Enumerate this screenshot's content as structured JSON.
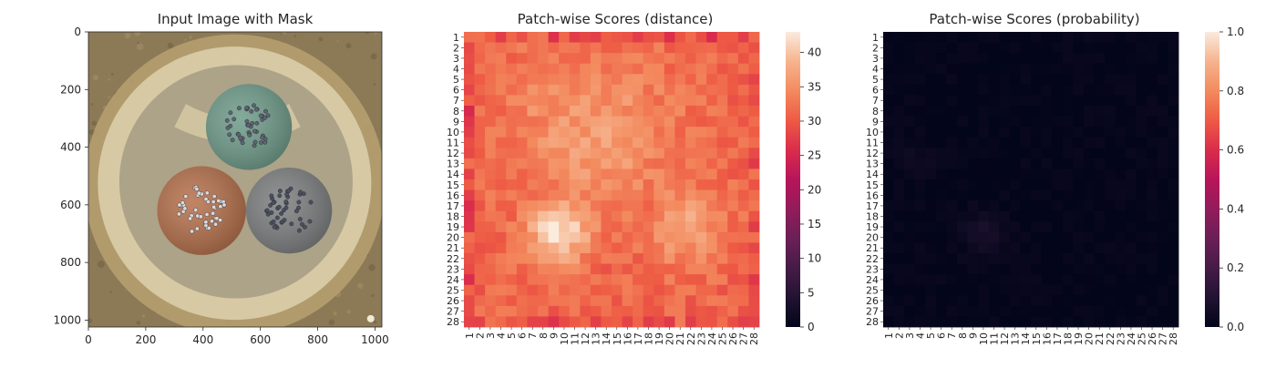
{
  "chart_data": [
    {
      "type": "image",
      "title": "Input Image with Mask",
      "xlim": [
        0,
        1024
      ],
      "ylim": [
        1024,
        0
      ],
      "xticks": [
        0,
        200,
        400,
        600,
        800,
        1000
      ],
      "yticks": [
        0,
        200,
        400,
        600,
        800,
        1000
      ],
      "image": {
        "background": "#8c7a57",
        "outer_ring": "#b59e70",
        "disc": "#d6c9a4",
        "inner_shadow": "#8b8471",
        "cables": [
          {
            "name": "top",
            "center": [
              560,
              330
            ],
            "radius": 150,
            "color": "#6e9b89",
            "core": "#5d6472"
          },
          {
            "name": "left",
            "center": [
              395,
              620
            ],
            "radius": 155,
            "color": "#b56f4a",
            "core": "#d9d9dd"
          },
          {
            "name": "right",
            "center": [
              700,
              620
            ],
            "radius": 150,
            "color": "#7c7e7f",
            "core": "#4a5060"
          }
        ]
      }
    },
    {
      "type": "heatmap",
      "title": "Patch-wise Scores (distance)",
      "labels": [
        "1",
        "2",
        "3",
        "4",
        "5",
        "6",
        "7",
        "8",
        "9",
        "10",
        "11",
        "12",
        "13",
        "14",
        "15",
        "16",
        "17",
        "18",
        "19",
        "20",
        "21",
        "22",
        "23",
        "24",
        "25",
        "26",
        "27",
        "28"
      ],
      "colorbar": {
        "min": 0,
        "max": 43,
        "ticks": [
          0,
          5,
          10,
          15,
          20,
          25,
          30,
          35,
          40
        ]
      },
      "pattern": {
        "base": 31,
        "edge_low": 27,
        "blobs": [
          {
            "row": 10.5,
            "col": 13,
            "peak": 36,
            "spread": 5.5
          },
          {
            "row": 19.5,
            "col": 9.5,
            "peak": 42,
            "spread": 2.2
          },
          {
            "row": 19,
            "col": 21.5,
            "peak": 37,
            "spread": 2.5
          },
          {
            "row": 6.5,
            "col": 8.5,
            "peak": 35,
            "spread": 2.8
          }
        ],
        "noise": 2.2
      }
    },
    {
      "type": "heatmap",
      "title": "Patch-wise Scores (probability)",
      "labels": [
        "1",
        "2",
        "3",
        "4",
        "5",
        "6",
        "7",
        "8",
        "9",
        "10",
        "11",
        "12",
        "13",
        "14",
        "15",
        "16",
        "17",
        "18",
        "19",
        "20",
        "21",
        "22",
        "23",
        "24",
        "25",
        "26",
        "27",
        "28"
      ],
      "colorbar": {
        "min": 0,
        "max": 1,
        "ticks": [
          "0.0",
          "0.2",
          "0.4",
          "0.6",
          "0.8",
          "1.0"
        ]
      },
      "pattern": {
        "base": 0.005,
        "blobs": [
          {
            "row": 19.5,
            "col": 10,
            "peak": 0.07,
            "spread": 1.5
          },
          {
            "row": 12.5,
            "col": 3.5,
            "peak": 0.04,
            "spread": 1.2
          }
        ],
        "noise": 0.015
      }
    }
  ]
}
